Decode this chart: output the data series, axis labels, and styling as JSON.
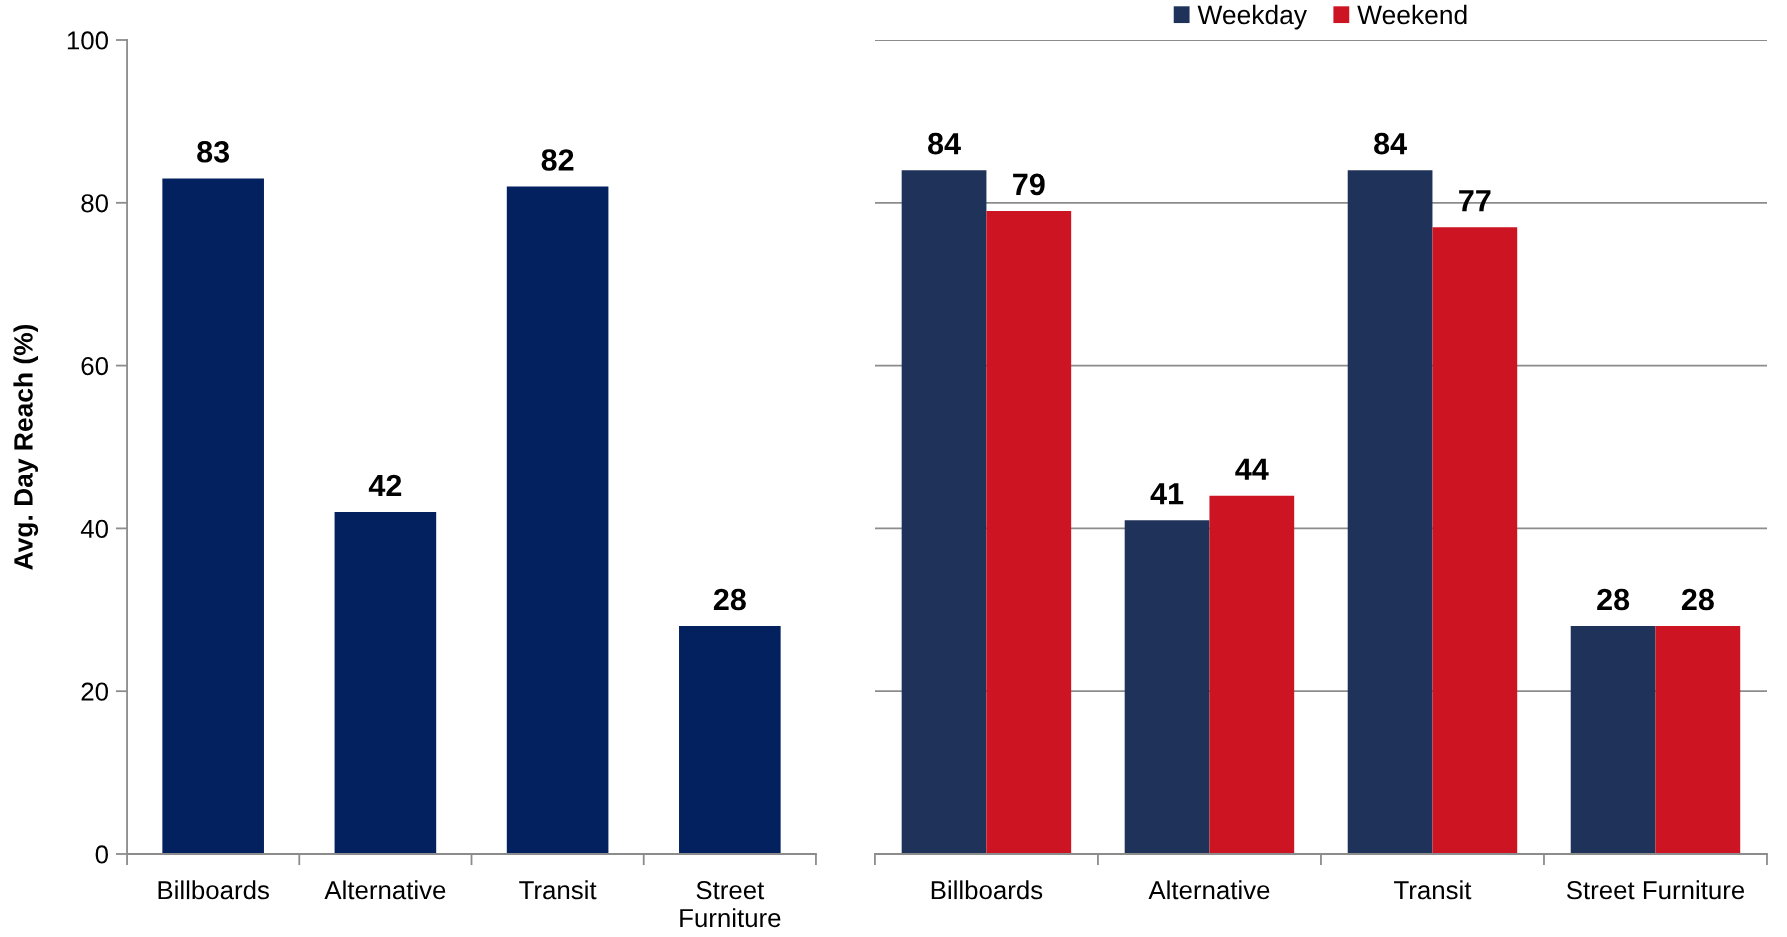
{
  "chart_data": [
    {
      "type": "bar",
      "categories": [
        "Billboards",
        "Alternative",
        "Transit",
        "Street\nFurniture"
      ],
      "values": [
        83,
        42,
        82,
        28
      ],
      "color": "#03205f",
      "ylabel": "Avg. Day Reach (%)",
      "ylim": [
        0,
        100
      ],
      "yticks": [
        0,
        20,
        40,
        60,
        80,
        100
      ],
      "data_labels": true
    },
    {
      "type": "bar",
      "categories": [
        "Billboards",
        "Alternative",
        "Transit",
        "Street Furniture"
      ],
      "series": [
        {
          "name": "Weekday",
          "color": "#1f3259",
          "values": [
            84,
            41,
            84,
            28
          ]
        },
        {
          "name": "Weekend",
          "color": "#cc1422",
          "values": [
            79,
            44,
            77,
            28
          ]
        }
      ],
      "ylim": [
        0,
        100
      ],
      "yticks": [
        {
          "value": 0,
          "label": null
        },
        {
          "value": 20,
          "label": null
        },
        {
          "value": 40,
          "label": null
        },
        {
          "value": 60,
          "label": null
        },
        {
          "value": 80,
          "label": null
        },
        {
          "value": 100,
          "label": null
        }
      ],
      "grid": "y",
      "legend": "top",
      "tick_labels": "x",
      "data_labels": true
    }
  ]
}
